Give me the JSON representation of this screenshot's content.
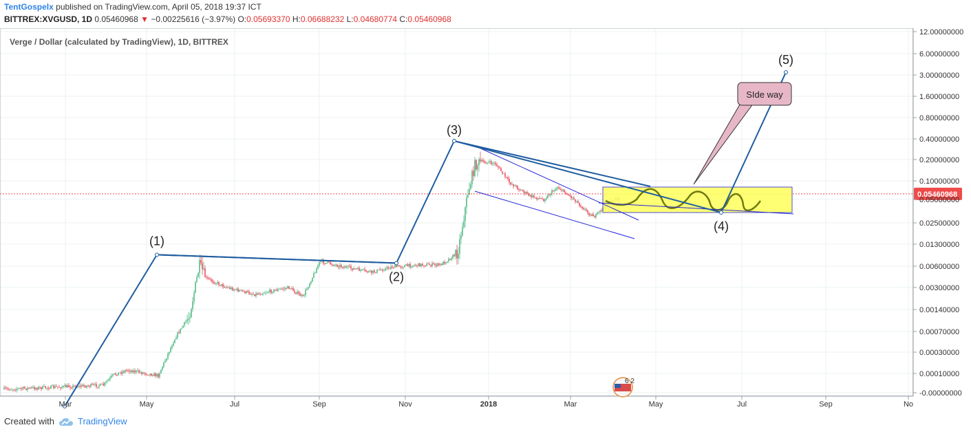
{
  "header": {
    "author": "TentGospelx",
    "published": "published on TradingView.com, April 05, 2018 19:37 ICT",
    "symbol": "BITTREX:XVGUSD, 1D",
    "last": "0.05460968",
    "change_arrow": "▼",
    "change": "−0.00225616 (−3.97%)",
    "o_label": "O:",
    "o_value": "0.05693370",
    "h_label": "H:",
    "h_value": "0.06688232",
    "l_label": "L:",
    "l_value": "0.04680774",
    "c_label": "C:",
    "c_value": "0.05460968"
  },
  "colors": {
    "up": "#53b987",
    "down": "#eb4d5c",
    "wave": "#1f5da0",
    "channel": "#2323d8",
    "box_fill": "#ffff66",
    "callout_fill": "#e7b7c8",
    "price_badge": "#ef4b4b",
    "path_stroke": "#6e7a10"
  },
  "footer": {
    "created_with": "Created with",
    "brand": "TradingView"
  },
  "chart_data": {
    "type": "candlestick",
    "title": "Verge / Dollar (calculated by TradingView), 1D, BITTREX",
    "y_scale": "log",
    "y_ticks": [
      "12.00000000",
      "6.00000000",
      "3.00000000",
      "1.60000000",
      "0.80000000",
      "0.40000000",
      "0.20000000",
      "0.10000000",
      "0.05000000",
      "0.02500000",
      "0.01300000",
      "0.00600000",
      "0.00300000",
      "0.00140000",
      "0.00070000",
      "0.00030000",
      "0.00010000",
      "-0.00000000"
    ],
    "x_ticks": [
      "Mar",
      "May",
      "Jul",
      "Sep",
      "Nov",
      "2018",
      "Mar",
      "May",
      "Jul",
      "Sep",
      "No"
    ],
    "current_price": "0.05460968",
    "wave_points": [
      {
        "label": "",
        "date": "2017-03-16",
        "value": 4e-05
      },
      {
        "label": "(1)",
        "date": "2017-05-22",
        "value": 0.0069
      },
      {
        "label": "(2)",
        "date": "2017-11-12",
        "value": 0.0052
      },
      {
        "label": "(3)",
        "date": "2017-12-24",
        "value": 0.33
      },
      {
        "label": "(4)",
        "date": "2018-07-06",
        "value": 0.029
      },
      {
        "label": "(5)",
        "date": "2018-08-22",
        "value": 3.4
      }
    ],
    "annotation": "SIde way",
    "legend_badge": "6 2"
  }
}
